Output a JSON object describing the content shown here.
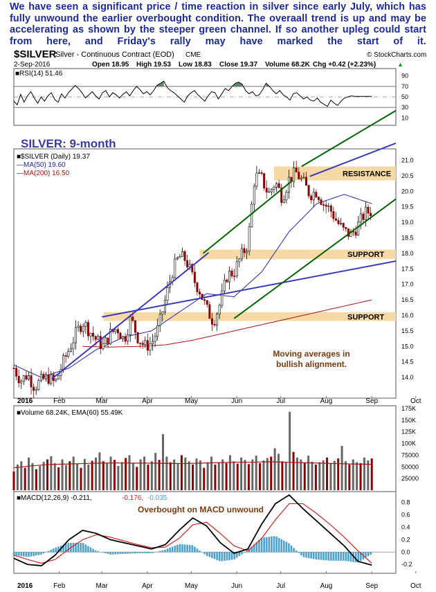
{
  "annotation": "We have seen a significant price / time reaction in silver since early July, which has fully unwound the earlier overbought condition. The overaall trend is up and may be accelerating as shown by the steeper green channel. If so another upleg could start from here, and Friday's rally may have marked the start of it.",
  "header": {
    "symbol": "$SILVER",
    "name": "Silver - Continuous Contract (EOD)",
    "exchange": "CME",
    "watermark": "© StockCharts.com",
    "date": "2-Sep-2016",
    "open": "Open 18.95",
    "high": "High 19.53",
    "low": "Low 18.83",
    "close": "Close 19.37",
    "volume": "Volume 68.2K",
    "change": "Chg +0.42 (+2.23%)",
    "change_arrow": "▲"
  },
  "colors": {
    "price_up": "#000000",
    "price_down": "#8b0000",
    "ma50": "#2222aa",
    "ma200": "#aa1111",
    "blue_line": "#3a3ab8",
    "green_line": "#006400",
    "zone": "#f7d9a6",
    "annotation_text": "#7a3a10",
    "title_blue": "#3a3aa0",
    "rsi_fill": "#3b6e3b",
    "macd_hist": "#4aa0d0",
    "macd_line": "#000000",
    "macd_signal": "#cc2222"
  },
  "chart_data": [
    {
      "type": "line",
      "panel": "RSI",
      "label": "RSI(14) 51.46",
      "ylim": [
        0,
        100
      ],
      "y_ticks": [
        90,
        70,
        50,
        30,
        10
      ],
      "reference_lines": [
        70,
        50,
        30
      ],
      "x_months": [
        "2016",
        "Feb",
        "Mar",
        "Apr",
        "May",
        "Jun",
        "Jul",
        "Aug",
        "Sep"
      ],
      "series": [
        {
          "name": "RSI(14)",
          "x": [
            0,
            5,
            10,
            15,
            20,
            25,
            30,
            35,
            40,
            45,
            50,
            55,
            60,
            65,
            70,
            75,
            80,
            85,
            90,
            95,
            100,
            105,
            110,
            115,
            120,
            125,
            130,
            135,
            140,
            145,
            150,
            155,
            160,
            165,
            170,
            175,
            180,
            185,
            190,
            195,
            200,
            205,
            210,
            215,
            220,
            225,
            230,
            235,
            240,
            245,
            250,
            255,
            260,
            265,
            270,
            275,
            280,
            285,
            290,
            295,
            300,
            305,
            310,
            315,
            320,
            325,
            330,
            335,
            340,
            345,
            350,
            355,
            360,
            365,
            370,
            375,
            380,
            385,
            390,
            395,
            400,
            405,
            410,
            415,
            420,
            425,
            430,
            435,
            440,
            445,
            450,
            455,
            460,
            465,
            470,
            475,
            480,
            485,
            490,
            495,
            500,
            505,
            510,
            515,
            520,
            525
          ],
          "values": [
            42,
            35,
            55,
            40,
            52,
            60,
            48,
            38,
            50,
            42,
            52,
            58,
            45,
            40,
            56,
            48,
            58,
            65,
            72,
            66,
            58,
            48,
            54,
            60,
            52,
            46,
            58,
            62,
            50,
            58,
            54,
            48,
            55,
            60,
            52,
            62,
            70,
            64,
            56,
            60,
            54,
            62,
            72,
            76,
            80,
            68,
            62,
            58,
            52,
            46,
            40,
            52,
            58,
            62,
            54,
            48,
            42,
            52,
            60,
            58,
            46,
            56,
            66,
            62,
            70,
            76,
            78,
            74,
            62,
            56,
            60,
            52,
            54,
            64,
            76,
            70,
            62,
            56,
            62,
            54,
            50,
            44,
            56,
            58,
            52,
            46,
            50,
            44,
            42,
            48,
            40,
            36,
            32,
            44,
            38,
            34,
            42,
            48,
            50,
            52,
            51,
            51,
            51,
            51,
            51,
            51
          ]
        }
      ]
    },
    {
      "type": "candlestick",
      "panel": "Price",
      "title": "SILVER: 9-month",
      "legend": [
        "$SILVER (Daily) 19.37",
        "MA(50) 19.60",
        "MA(200) 16.50"
      ],
      "ylim": [
        13.4,
        21.3
      ],
      "y_ticks": [
        21.0,
        20.5,
        20.0,
        19.5,
        19.0,
        18.5,
        18.0,
        17.5,
        17.0,
        16.5,
        16.0,
        15.5,
        15.0,
        14.5,
        14.0
      ],
      "x_months": [
        "2016",
        "Feb",
        "Mar",
        "Apr",
        "May",
        "Jun",
        "Jul",
        "Aug",
        "Sep",
        "Oct"
      ],
      "zones": [
        {
          "label": "RESISTANCE",
          "low": 20.35,
          "high": 20.8
        },
        {
          "label": "SUPPORT",
          "low": 17.82,
          "high": 18.12
        },
        {
          "label": "SUPPORT",
          "low": 15.82,
          "high": 16.1
        }
      ],
      "trendlines": [
        {
          "color": "blue",
          "from": {
            "day": 55,
            "price": 13.95
          },
          "to": {
            "day": 283,
            "price": 18.02
          }
        },
        {
          "color": "blue",
          "from": {
            "day": 128,
            "price": 15.95
          },
          "to": {
            "day": 555,
            "price": 17.75
          }
        },
        {
          "color": "blue",
          "from": {
            "day": 430,
            "price": 20.48
          },
          "to": {
            "day": 555,
            "price": 21.55
          }
        },
        {
          "color": "green",
          "from": {
            "day": 275,
            "price": 18.0
          },
          "to": {
            "day": 405,
            "price": 20.35
          }
        },
        {
          "color": "green",
          "from": {
            "day": 320,
            "price": 15.9
          },
          "to": {
            "day": 555,
            "price": 19.75
          }
        },
        {
          "color": "green",
          "from": {
            "day": 418,
            "price": 20.8
          },
          "to": {
            "day": 555,
            "price": 22.6
          }
        }
      ],
      "annotation": "Moving averages in bullish alignment.",
      "closes": {
        "x": [
          0,
          10,
          20,
          30,
          40,
          50,
          60,
          70,
          80,
          90,
          100,
          110,
          120,
          130,
          140,
          150,
          160,
          170,
          180,
          190,
          200,
          210,
          220,
          230,
          240,
          250,
          260,
          270,
          280,
          290,
          300,
          310,
          320,
          330,
          340,
          350,
          360,
          370,
          380,
          390,
          400,
          410,
          420,
          430,
          440,
          450,
          460,
          470,
          480,
          490,
          500,
          510,
          520
        ],
        "values": [
          14.3,
          13.9,
          14.1,
          13.7,
          13.9,
          14.0,
          13.8,
          14.4,
          14.9,
          15.4,
          15.8,
          15.5,
          15.2,
          15.0,
          15.4,
          15.6,
          15.2,
          15.9,
          15.3,
          15.0,
          15.1,
          15.6,
          16.5,
          17.4,
          17.9,
          17.8,
          17.2,
          16.8,
          16.2,
          15.8,
          16.4,
          17.3,
          17.4,
          17.9,
          18.3,
          20.5,
          20.4,
          19.9,
          20.3,
          19.8,
          20.4,
          20.6,
          20.3,
          19.9,
          20.0,
          19.6,
          19.4,
          19.0,
          18.7,
          18.6,
          18.9,
          19.3,
          19.37
        ]
      },
      "ma50": {
        "x": [
          0,
          40,
          80,
          120,
          160,
          200,
          240,
          280,
          320,
          360,
          400,
          440,
          480,
          520
        ],
        "values": [
          14.4,
          14.0,
          14.3,
          14.9,
          15.3,
          15.5,
          16.1,
          16.7,
          16.6,
          17.4,
          18.7,
          19.6,
          19.9,
          19.6
        ]
      },
      "ma200": {
        "x": [
          100,
          140,
          180,
          220,
          260,
          300,
          340,
          380,
          420,
          460,
          500,
          520
        ],
        "values": [
          15.0,
          14.98,
          15.0,
          15.05,
          15.2,
          15.4,
          15.6,
          15.8,
          16.0,
          16.2,
          16.4,
          16.5
        ]
      }
    },
    {
      "type": "bar",
      "panel": "Volume",
      "label": "Volume 68.24K, EMA(60) 55.49K",
      "ylim": [
        0,
        175000
      ],
      "y_ticks": [
        "175K",
        "150K",
        "125K",
        "100K",
        "75000",
        "50000",
        "25000"
      ],
      "values": [
        40000,
        55000,
        62000,
        48000,
        70000,
        58000,
        45000,
        52000,
        61000,
        66000,
        73000,
        58000,
        49000,
        66000,
        54000,
        62000,
        72000,
        57000,
        48000,
        67000,
        55000,
        63000,
        70000,
        81000,
        62000,
        58000,
        72000,
        65000,
        52000,
        60000,
        69000,
        75000,
        58000,
        50000,
        66000,
        72000,
        55000,
        62000,
        80000,
        65000,
        120000,
        72000,
        60000,
        66000,
        58000,
        75000,
        70000,
        62000,
        55000,
        68000,
        64000,
        48000,
        60000,
        72000,
        55000,
        60000,
        66000,
        58000,
        75000,
        62000,
        57000,
        70000,
        65000,
        56000,
        66000,
        74000,
        58000,
        64000,
        69000,
        72000,
        90000,
        78000,
        62000,
        60000,
        168000,
        82000,
        70000,
        66000,
        58000,
        74000,
        61000,
        55000,
        60000,
        64000,
        70000,
        58000,
        63000,
        68000,
        95000,
        62000,
        55000,
        66000,
        60000,
        58000,
        70000,
        64000,
        68000
      ],
      "ema": [
        48000,
        52000,
        55000,
        56000,
        57000,
        58000,
        58500,
        58000,
        58000,
        57500,
        57000,
        58000,
        59000,
        60000,
        60000,
        61000,
        60000,
        59000,
        58000,
        57000,
        56000,
        55490
      ]
    },
    {
      "type": "line",
      "panel": "MACD",
      "label_main": "MACD(12,26,9) -0.211,",
      "label_signal": "-0.176,",
      "label_hist": "-0.035",
      "annotation": "Overbought on MACD unwound",
      "ylim": [
        -0.32,
        0.93
      ],
      "y_ticks": [
        0.8,
        0.6,
        0.4,
        0.2,
        0.0,
        -0.2
      ],
      "x_months": [
        "2016",
        "Feb",
        "Mar",
        "Apr",
        "May",
        "Jun",
        "Jul",
        "Aug",
        "Sep",
        "Oct"
      ],
      "macd": {
        "x": [
          0,
          20,
          40,
          60,
          80,
          100,
          120,
          140,
          160,
          180,
          200,
          220,
          240,
          260,
          280,
          300,
          320,
          340,
          360,
          380,
          400,
          420,
          440,
          460,
          480,
          500,
          520
        ],
        "values": [
          -0.1,
          -0.2,
          -0.22,
          -0.05,
          0.2,
          0.35,
          0.3,
          0.2,
          0.15,
          0.1,
          0.05,
          0.12,
          0.35,
          0.55,
          0.42,
          0.15,
          -0.02,
          0.05,
          0.45,
          0.78,
          0.92,
          0.7,
          0.5,
          0.3,
          0.1,
          -0.15,
          -0.21
        ]
      },
      "signal": {
        "x": [
          0,
          20,
          40,
          60,
          80,
          100,
          120,
          140,
          160,
          180,
          200,
          220,
          240,
          260,
          280,
          300,
          320,
          340,
          360,
          380,
          400,
          420,
          440,
          460,
          480,
          500,
          520
        ],
        "values": [
          -0.05,
          -0.12,
          -0.18,
          -0.12,
          0.05,
          0.2,
          0.28,
          0.24,
          0.18,
          0.12,
          0.07,
          0.08,
          0.22,
          0.44,
          0.48,
          0.3,
          0.1,
          0.02,
          0.22,
          0.52,
          0.78,
          0.78,
          0.62,
          0.44,
          0.24,
          0.02,
          -0.18
        ]
      }
    }
  ]
}
